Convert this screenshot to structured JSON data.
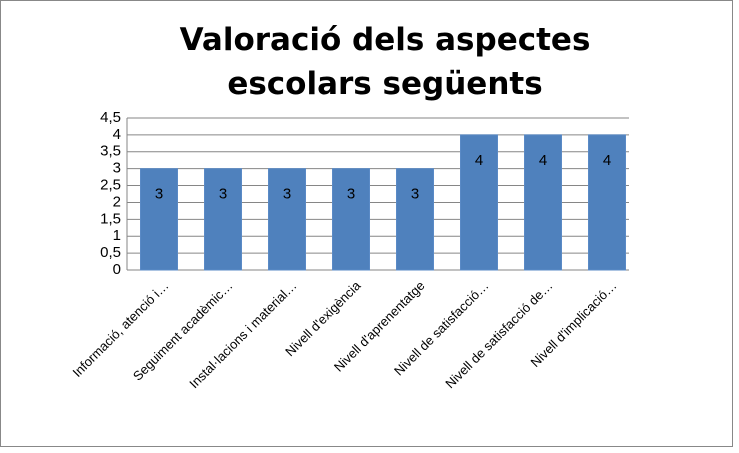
{
  "chart_data": {
    "type": "bar",
    "title": "Valoració dels aspectes escolars següents",
    "categories": [
      "Informació, atenció i…",
      "Seguiment acadèmic…",
      "Instal·lacions i material…",
      "Nivell d'exigència",
      "Nivell d'aprenentatge",
      "Nivell de satisfacció…",
      "Nivell de satisfacció de…",
      "Nivell d'implicació…"
    ],
    "values": [
      3,
      3,
      3,
      3,
      3,
      4,
      4,
      4
    ],
    "color": "#4f81bd",
    "ylim": [
      0,
      4.5
    ],
    "yticks": [
      0,
      {
        "value": 0.5,
        "label": "0,5"
      },
      1,
      {
        "value": 1.5,
        "label": "1,5"
      },
      2,
      {
        "value": 2.5,
        "label": "2,5"
      },
      3,
      {
        "value": 3.5,
        "label": "3,5"
      },
      4,
      {
        "value": 4.5,
        "label": "4,5"
      }
    ],
    "grid": true
  }
}
